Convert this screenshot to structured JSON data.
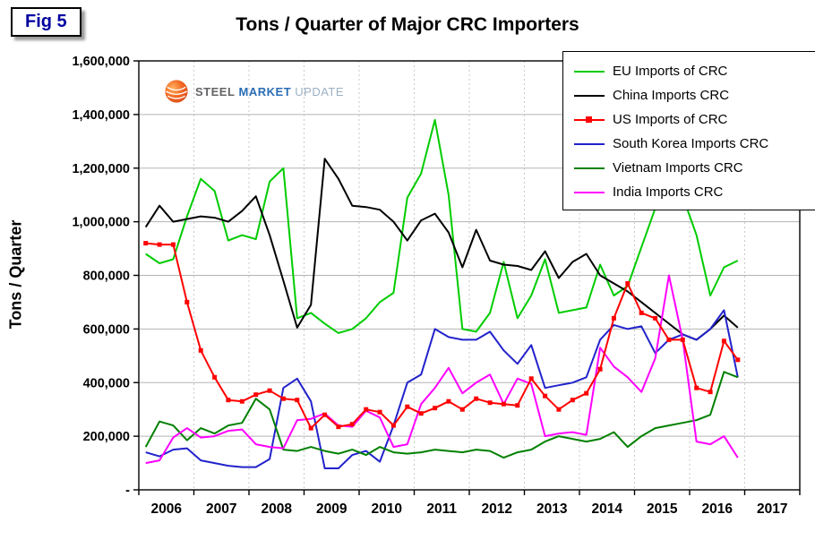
{
  "fig_label": "Fig 5",
  "title": "Tons / Quarter of Major CRC Importers",
  "y_axis_title": "Tons / Quarter",
  "logo": {
    "steel": "STEEL",
    "market": "MARKET",
    "update": "UPDATE"
  },
  "chart_data": {
    "type": "line",
    "title": "Tons / Quarter of Major CRC Importers",
    "ylabel": "Tons / Quarter",
    "xlabel": "",
    "ylim": [
      0,
      1600000
    ],
    "grid": true,
    "legend_position": "top-right",
    "x_years": [
      "2006",
      "2007",
      "2008",
      "2009",
      "2010",
      "2011",
      "2012",
      "2013",
      "2014",
      "2015",
      "2016",
      "2017"
    ],
    "x_frequency": "quarterly",
    "x_start": "2006-Q1",
    "y_tick_labels": [
      "1,600,000",
      "1,400,000",
      "1,200,000",
      "1,000,000",
      "800,000",
      "600,000",
      "400,000",
      "200,000",
      "-"
    ],
    "series": [
      {
        "name": "EU Imports of CRC",
        "color": "#00CC00",
        "marker": "none",
        "values": [
          880000,
          845000,
          860000,
          1020000,
          1160000,
          1115000,
          930000,
          950000,
          935000,
          1150000,
          1200000,
          640000,
          660000,
          620000,
          585000,
          600000,
          640000,
          700000,
          735000,
          1090000,
          1180000,
          1380000,
          1100000,
          600000,
          590000,
          660000,
          850000,
          640000,
          725000,
          860000,
          660000,
          670000,
          680000,
          840000,
          725000,
          760000,
          905000,
          1050000,
          1200000,
          1095000,
          950000,
          725000,
          830000,
          855000
        ]
      },
      {
        "name": "China Imports CRC",
        "color": "#000000",
        "marker": "none",
        "values": [
          980000,
          1060000,
          1000000,
          1010000,
          1020000,
          1015000,
          1000000,
          1040000,
          1095000,
          950000,
          780000,
          605000,
          690000,
          1235000,
          1160000,
          1060000,
          1055000,
          1045000,
          1000000,
          930000,
          1005000,
          1030000,
          960000,
          830000,
          970000,
          855000,
          840000,
          835000,
          820000,
          890000,
          790000,
          850000,
          880000,
          800000,
          770000,
          740000,
          700000,
          660000,
          620000,
          580000,
          560000,
          600000,
          650000,
          605000
        ]
      },
      {
        "name": "US Imports of CRC",
        "color": "#FF0000",
        "marker": "square",
        "values": [
          920000,
          915000,
          915000,
          700000,
          520000,
          420000,
          335000,
          330000,
          355000,
          370000,
          340000,
          335000,
          230000,
          280000,
          235000,
          245000,
          300000,
          290000,
          240000,
          310000,
          285000,
          305000,
          330000,
          300000,
          340000,
          325000,
          320000,
          315000,
          415000,
          350000,
          300000,
          335000,
          360000,
          450000,
          640000,
          770000,
          660000,
          640000,
          560000,
          560000,
          380000,
          365000,
          555000,
          485000
        ]
      },
      {
        "name": "South Korea Imports CRC",
        "color": "#2222CC",
        "marker": "none",
        "values": [
          140000,
          125000,
          150000,
          155000,
          110000,
          100000,
          90000,
          85000,
          85000,
          115000,
          380000,
          415000,
          330000,
          80000,
          80000,
          130000,
          145000,
          105000,
          240000,
          400000,
          430000,
          600000,
          570000,
          560000,
          560000,
          590000,
          520000,
          470000,
          540000,
          380000,
          390000,
          400000,
          420000,
          560000,
          615000,
          600000,
          610000,
          510000,
          560000,
          580000,
          560000,
          600000,
          670000,
          420000
        ]
      },
      {
        "name": "Vietnam Imports CRC",
        "color": "#008000",
        "marker": "none",
        "values": [
          160000,
          255000,
          240000,
          185000,
          230000,
          210000,
          240000,
          250000,
          340000,
          300000,
          150000,
          145000,
          160000,
          145000,
          135000,
          150000,
          130000,
          160000,
          140000,
          135000,
          140000,
          150000,
          145000,
          140000,
          150000,
          145000,
          120000,
          140000,
          150000,
          180000,
          200000,
          190000,
          180000,
          190000,
          215000,
          160000,
          200000,
          230000,
          240000,
          250000,
          260000,
          280000,
          440000,
          420000
        ]
      },
      {
        "name": "India Imports CRC",
        "color": "#FF00FF",
        "marker": "none",
        "values": [
          100000,
          110000,
          195000,
          230000,
          195000,
          200000,
          220000,
          225000,
          170000,
          160000,
          155000,
          260000,
          265000,
          285000,
          240000,
          235000,
          295000,
          270000,
          160000,
          170000,
          320000,
          380000,
          455000,
          360000,
          400000,
          430000,
          320000,
          415000,
          395000,
          200000,
          210000,
          215000,
          205000,
          530000,
          460000,
          420000,
          365000,
          490000,
          800000,
          560000,
          180000,
          170000,
          200000,
          120000
        ]
      }
    ]
  }
}
